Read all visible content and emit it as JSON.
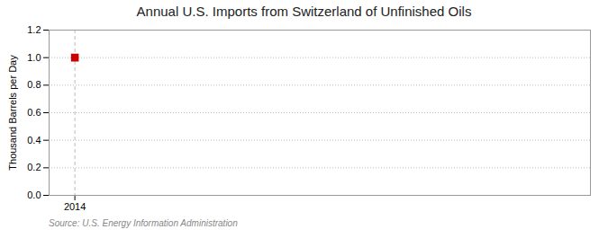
{
  "chart_data": {
    "type": "scatter",
    "title": "Annual U.S. Imports from Switzerland of Unfinished Oils",
    "ylabel": "Thousand Barrels per Day",
    "annotation": "Source: U.S. Energy Information Administration",
    "x": [
      2014
    ],
    "values": [
      1.0
    ],
    "color": "#cc0000",
    "marker": "square",
    "xlim": [
      2013.7,
      2020.0
    ],
    "xticks": [
      2014
    ],
    "ylim": [
      0.0,
      1.2
    ],
    "yticks": [
      {
        "value": 0.0,
        "label": "0.0"
      },
      0.2,
      0.4,
      0.6,
      0.8,
      {
        "value": 1.0,
        "label": "1.0"
      },
      1.2
    ],
    "grid": true
  }
}
